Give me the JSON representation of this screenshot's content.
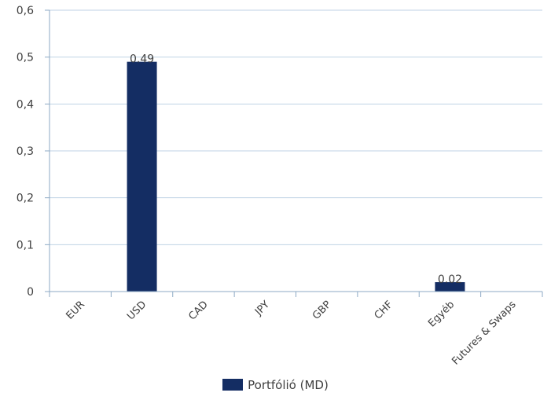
{
  "chart_data": {
    "type": "bar",
    "categories": [
      "EUR",
      "USD",
      "CAD",
      "JPY",
      "GBP",
      "CHF",
      "Egyéb",
      "Futures & Swaps"
    ],
    "series": [
      {
        "name": "Portfólió (MD)",
        "values": [
          0,
          0.49,
          0,
          0,
          0,
          0,
          0.02,
          0
        ],
        "data_labels": [
          "",
          "0.49",
          "",
          "",
          "",
          "",
          "0.02",
          ""
        ]
      }
    ],
    "ylim": [
      0,
      0.6
    ],
    "yticks": [
      0,
      0.1,
      0.2,
      0.3,
      0.4,
      0.5,
      0.6
    ],
    "ytick_labels": [
      "0",
      "0,1",
      "0,2",
      "0,3",
      "0,4",
      "0,5",
      "0,6"
    ],
    "grid": true,
    "legend_position": "bottom",
    "colors": {
      "bar": "#142d63",
      "grid": "#bfd2e4",
      "axis": "#8eaac5",
      "text": "#404040"
    }
  }
}
